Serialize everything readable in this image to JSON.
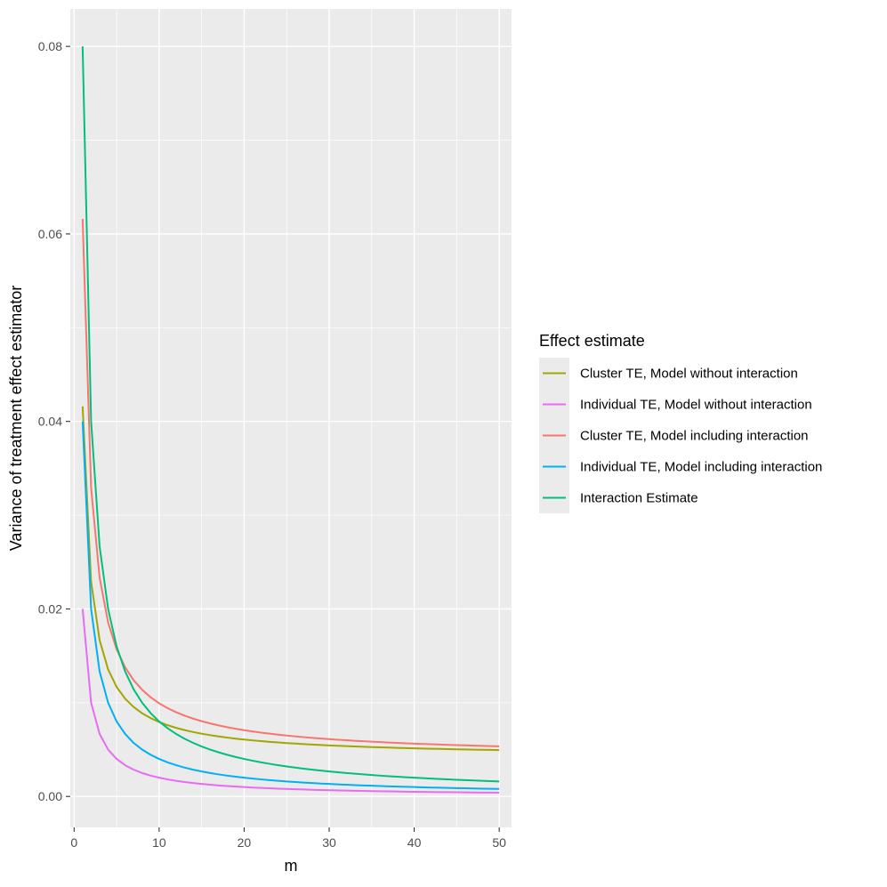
{
  "chart_data": {
    "type": "line",
    "title": "",
    "xlabel": "m",
    "ylabel": "Variance of treatment effect estimator",
    "xlim": [
      -0.45,
      51.45
    ],
    "ylim": [
      -0.0033,
      0.084
    ],
    "xticks": [
      0,
      10,
      20,
      30,
      40,
      50
    ],
    "xtick_labels": [
      "0",
      "10",
      "20",
      "30",
      "40",
      "50"
    ],
    "yticks": [
      0.0,
      0.02,
      0.04,
      0.06,
      0.08
    ],
    "ytick_labels": [
      "0.00",
      "0.02",
      "0.04",
      "0.06",
      "0.08"
    ],
    "x": [
      1,
      2,
      3,
      4,
      5,
      6,
      7,
      8,
      9,
      10,
      11,
      12,
      13,
      14,
      15,
      16,
      17,
      18,
      19,
      20,
      21,
      22,
      23,
      24,
      25,
      26,
      27,
      28,
      29,
      30,
      31,
      32,
      33,
      34,
      35,
      36,
      37,
      38,
      39,
      40,
      41,
      42,
      43,
      44,
      45,
      46,
      47,
      48,
      49,
      50
    ],
    "legend": {
      "title": "Effect estimate",
      "position": "right"
    },
    "grid": true,
    "series": [
      {
        "name": "Cluster TE, Model without interaction",
        "color": "#A3A500",
        "formula": "0.0042 + 0.0374/m",
        "values": [
          0.0416,
          0.0229,
          0.01667,
          0.01355,
          0.01168,
          0.01043,
          0.00954,
          0.008875,
          0.008356,
          0.00794,
          0.0076,
          0.007317,
          0.007077,
          0.006871,
          0.006693,
          0.006538,
          0.0064,
          0.006278,
          0.006168,
          0.00607,
          0.005981,
          0.0059,
          0.005826,
          0.005758,
          0.005696,
          0.005638,
          0.005585,
          0.005536,
          0.00549,
          0.005447,
          0.005406,
          0.005369,
          0.005333,
          0.0053,
          0.005269,
          0.005239,
          0.005211,
          0.005184,
          0.005159,
          0.005135,
          0.005112,
          0.00509,
          0.00507,
          0.00505,
          0.005031,
          0.005013,
          0.004996,
          0.004979,
          0.004963,
          0.004948
        ]
      },
      {
        "name": "Individual TE, Model without interaction",
        "color": "#E76BF3",
        "formula": "0.02/m",
        "values": [
          0.02,
          0.01,
          0.006667,
          0.005,
          0.004,
          0.003333,
          0.002857,
          0.0025,
          0.002222,
          0.002,
          0.001818,
          0.001667,
          0.001538,
          0.001429,
          0.001333,
          0.00125,
          0.001176,
          0.001111,
          0.001053,
          0.001,
          0.000952,
          0.000909,
          0.00087,
          0.000833,
          0.0008,
          0.000769,
          0.000741,
          0.000714,
          0.00069,
          0.000667,
          0.000645,
          0.000625,
          0.000606,
          0.000588,
          0.000571,
          0.000556,
          0.000541,
          0.000526,
          0.000513,
          0.0005,
          0.000488,
          0.000476,
          0.000465,
          0.000455,
          0.000444,
          0.000435,
          0.000426,
          0.000417,
          0.000408,
          0.0004
        ]
      },
      {
        "name": "Cluster TE, Model including interaction",
        "color": "#F8766D",
        "formula": "0.0042 + 0.0574/m",
        "values": [
          0.0616,
          0.0329,
          0.02333,
          0.01855,
          0.01568,
          0.01377,
          0.0124,
          0.011375,
          0.010578,
          0.00994,
          0.009418,
          0.008983,
          0.008615,
          0.0083,
          0.008027,
          0.007788,
          0.007576,
          0.007389,
          0.007221,
          0.00707,
          0.006933,
          0.006809,
          0.006696,
          0.006592,
          0.006496,
          0.006408,
          0.006326,
          0.00625,
          0.006179,
          0.006113,
          0.006052,
          0.005994,
          0.005939,
          0.005888,
          0.00584,
          0.005794,
          0.005751,
          0.00571,
          0.005672,
          0.005635,
          0.0056,
          0.005567,
          0.005535,
          0.005505,
          0.005476,
          0.005448,
          0.005421,
          0.005396,
          0.005371,
          0.005348
        ]
      },
      {
        "name": "Individual TE, Model including interaction",
        "color": "#00B0F6",
        "formula": "0.04/m",
        "values": [
          0.04,
          0.02,
          0.013333,
          0.01,
          0.008,
          0.006667,
          0.005714,
          0.005,
          0.004444,
          0.004,
          0.003636,
          0.003333,
          0.003077,
          0.002857,
          0.002667,
          0.0025,
          0.002353,
          0.002222,
          0.002105,
          0.002,
          0.001905,
          0.001818,
          0.001739,
          0.001667,
          0.0016,
          0.001538,
          0.001481,
          0.001429,
          0.001379,
          0.001333,
          0.00129,
          0.00125,
          0.001212,
          0.001176,
          0.001143,
          0.001111,
          0.001081,
          0.001053,
          0.001026,
          0.001,
          0.000976,
          0.000952,
          0.00093,
          0.000909,
          0.000889,
          0.00087,
          0.000851,
          0.000833,
          0.000816,
          0.0008
        ]
      },
      {
        "name": "Interaction Estimate",
        "color": "#00BF7D",
        "formula": "0.08/m",
        "values": [
          0.08,
          0.04,
          0.026667,
          0.02,
          0.016,
          0.013333,
          0.011429,
          0.01,
          0.008889,
          0.008,
          0.007273,
          0.006667,
          0.006154,
          0.005714,
          0.005333,
          0.005,
          0.004706,
          0.004444,
          0.004211,
          0.004,
          0.00381,
          0.003636,
          0.003478,
          0.003333,
          0.0032,
          0.003077,
          0.002963,
          0.002857,
          0.002759,
          0.002667,
          0.002581,
          0.0025,
          0.002424,
          0.002353,
          0.002286,
          0.002222,
          0.002162,
          0.002105,
          0.002051,
          0.002,
          0.001951,
          0.001905,
          0.00186,
          0.001818,
          0.001778,
          0.001739,
          0.001702,
          0.001667,
          0.001633,
          0.0016
        ]
      }
    ]
  },
  "colors": {
    "panel_background": "#EBEBEB",
    "grid": "#FFFFFF",
    "tick": "#333333",
    "legend_key_background": "#EBEBEB"
  }
}
